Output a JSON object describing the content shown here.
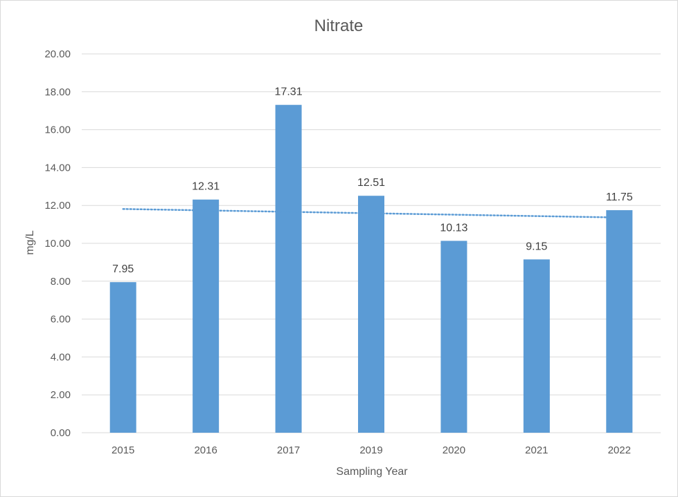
{
  "chart_data": {
    "type": "bar",
    "title": "Nitrate",
    "xlabel": "Sampling Year",
    "ylabel": "mg/L",
    "categories": [
      "2015",
      "2016",
      "2017",
      "2019",
      "2020",
      "2021",
      "2022"
    ],
    "series": [
      {
        "values": [
          7.95,
          12.31,
          17.31,
          12.51,
          10.13,
          9.15,
          11.75
        ]
      }
    ],
    "data_labels": [
      "7.95",
      "12.31",
      "17.31",
      "12.51",
      "10.13",
      "9.15",
      "11.75"
    ],
    "yticks": [
      "0.00",
      "2.00",
      "4.00",
      "6.00",
      "8.00",
      "10.00",
      "12.00",
      "14.00",
      "16.00",
      "18.00",
      "20.00"
    ],
    "ylim": [
      0,
      20
    ],
    "trendline": {
      "type": "linear",
      "style": "dotted"
    },
    "grid": true,
    "legend": "none",
    "colors": {
      "bar": "#5b9bd5",
      "trendline": "#5b9bd5",
      "grid": "#d9d9d9",
      "text": "#595959"
    }
  }
}
